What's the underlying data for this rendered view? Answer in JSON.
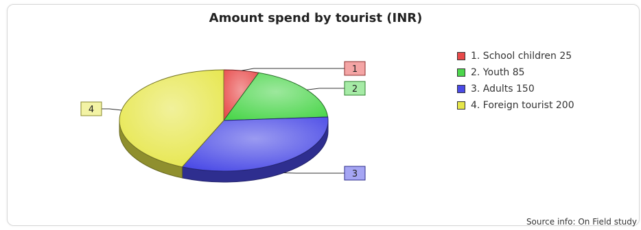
{
  "chart_data": {
    "type": "pie",
    "title": "Amount spend by tourist (INR)",
    "categories": [
      "School children",
      "Youth",
      "Adults",
      "Foreign tourist"
    ],
    "values": [
      25,
      85,
      150,
      200
    ],
    "slice_labels": [
      "1",
      "2",
      "3",
      "4"
    ],
    "legend": [
      {
        "label": "1. School children 25",
        "color": "#e84a4a"
      },
      {
        "label": "2. Youth 85",
        "color": "#4cd64c"
      },
      {
        "label": "3. Adults 150",
        "color": "#4a4ae6"
      },
      {
        "label": "4. Foreign tourist 200",
        "color": "#e6e64a"
      }
    ],
    "legend_position": "right",
    "source": "Source info: On Field study"
  }
}
